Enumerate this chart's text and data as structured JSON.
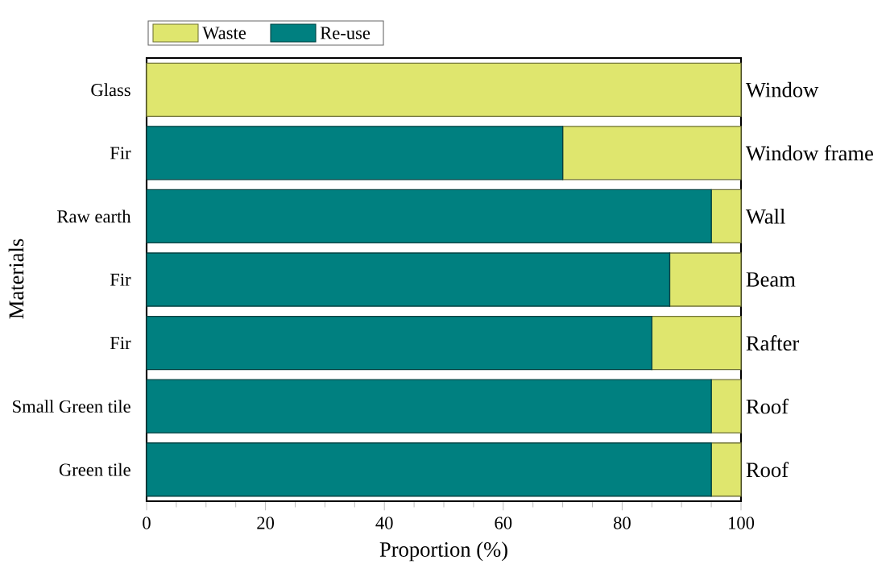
{
  "chart_data": {
    "type": "bar",
    "orientation": "horizontal",
    "stacked": true,
    "categories": [
      "Glass",
      "Fir",
      "Raw earth",
      "Fir",
      "Fir",
      "Small Green tile",
      "Green tile"
    ],
    "series": [
      {
        "name": "Re-use",
        "color": "#008080",
        "values": [
          0,
          70,
          95,
          88,
          85,
          95,
          95
        ]
      },
      {
        "name": "Waste",
        "color": "#dfe66e",
        "values": [
          100,
          30,
          5,
          12,
          15,
          5,
          5
        ]
      }
    ],
    "xlim": [
      0,
      100
    ],
    "xticks": [
      0,
      20,
      40,
      60,
      80,
      100
    ],
    "xlabel": "Proportion (%)",
    "ylabel": "Materials",
    "legend": "top left",
    "annotations": [
      "Window",
      "Window frame",
      "Wall",
      "Beam",
      "Rafter",
      "Roof",
      "Roof"
    ]
  }
}
